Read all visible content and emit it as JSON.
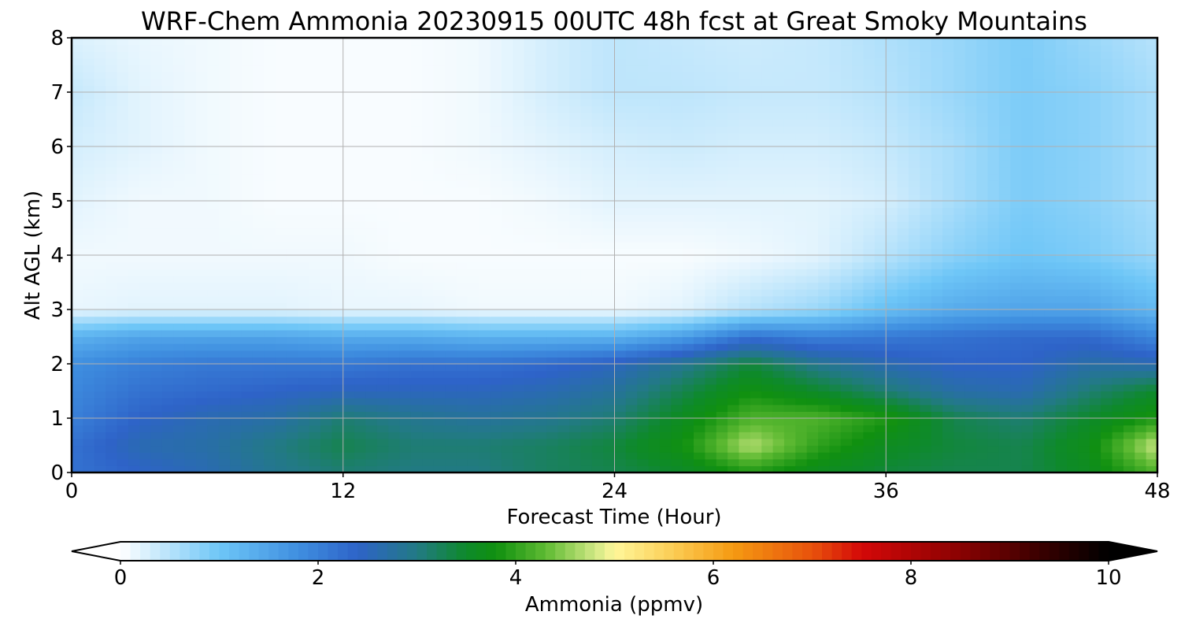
{
  "chart_data": {
    "type": "heatmap",
    "title": "WRF-Chem Ammonia  20230915 00UTC 48h fcst at Great Smoky Mountains",
    "xlabel": "Forecast Time (Hour)",
    "ylabel": "Alt AGL (km)",
    "xlim": [
      0,
      48
    ],
    "ylim": [
      0,
      8
    ],
    "x_ticks": [
      "0",
      "12",
      "24",
      "36",
      "48"
    ],
    "y_ticks": [
      "0",
      "1",
      "2",
      "3",
      "4",
      "5",
      "6",
      "7",
      "8"
    ],
    "grid": true,
    "x_hours": [
      0,
      3,
      6,
      9,
      12,
      15,
      18,
      21,
      24,
      27,
      30,
      33,
      36,
      39,
      42,
      45,
      48
    ],
    "z_km": [
      0,
      0.5,
      1,
      1.5,
      2,
      2.5,
      3,
      4,
      5,
      6,
      7,
      8
    ],
    "values_ppmv": [
      [
        2.2,
        2.4,
        2.6,
        2.9,
        3.1,
        3.0,
        3.0,
        3.2,
        3.3,
        3.5,
        3.9,
        3.6,
        3.4,
        3.3,
        3.3,
        3.6,
        4.2
      ],
      [
        2.2,
        2.6,
        2.7,
        3.0,
        3.3,
        3.1,
        3.1,
        3.2,
        3.4,
        3.8,
        4.7,
        4.0,
        3.6,
        3.4,
        3.3,
        3.7,
        4.8
      ],
      [
        2.0,
        2.4,
        2.6,
        2.7,
        3.1,
        2.9,
        2.8,
        2.9,
        3.1,
        3.6,
        4.2,
        4.2,
        3.9,
        3.3,
        3.1,
        3.5,
        3.9
      ],
      [
        1.9,
        2.2,
        2.3,
        2.4,
        2.5,
        2.5,
        2.5,
        2.6,
        2.8,
        3.3,
        3.8,
        3.5,
        3.1,
        2.7,
        2.6,
        3.1,
        3.5
      ],
      [
        1.8,
        2.0,
        2.1,
        2.1,
        2.1,
        2.2,
        2.2,
        2.3,
        2.5,
        2.9,
        3.4,
        2.9,
        2.6,
        2.4,
        2.4,
        2.7,
        2.6
      ],
      [
        1.3,
        1.5,
        1.5,
        1.5,
        1.4,
        1.4,
        1.3,
        1.3,
        1.3,
        1.6,
        2.2,
        2.0,
        2.1,
        2.2,
        2.3,
        2.3,
        1.9
      ],
      [
        0.15,
        0.2,
        0.2,
        0.2,
        0.15,
        0.15,
        0.1,
        0.1,
        0.1,
        0.2,
        0.5,
        0.7,
        1.1,
        1.4,
        1.5,
        1.5,
        1.2
      ],
      [
        0.1,
        0.1,
        0.1,
        0.1,
        0.1,
        0.05,
        0.05,
        0.05,
        0.05,
        0.05,
        0.1,
        0.2,
        0.5,
        0.8,
        1.0,
        0.9,
        0.7
      ],
      [
        0.2,
        0.1,
        0.1,
        0.05,
        0.05,
        0.05,
        0.05,
        0.1,
        0.2,
        0.2,
        0.2,
        0.2,
        0.3,
        0.6,
        0.9,
        0.8,
        0.6
      ],
      [
        0.3,
        0.2,
        0.1,
        0.05,
        0.05,
        0.05,
        0.1,
        0.2,
        0.3,
        0.35,
        0.3,
        0.3,
        0.4,
        0.6,
        0.9,
        0.8,
        0.6
      ],
      [
        0.4,
        0.2,
        0.1,
        0.05,
        0.05,
        0.05,
        0.1,
        0.3,
        0.45,
        0.45,
        0.4,
        0.4,
        0.5,
        0.7,
        0.9,
        0.8,
        0.6
      ],
      [
        0.25,
        0.15,
        0.1,
        0.05,
        0.05,
        0.05,
        0.1,
        0.3,
        0.45,
        0.4,
        0.35,
        0.4,
        0.55,
        0.7,
        0.9,
        0.7,
        0.5
      ]
    ],
    "colorbar": {
      "label": "Ammonia  (ppmv)",
      "ticks": [
        "0",
        "2",
        "4",
        "6",
        "8",
        "10"
      ],
      "range": [
        0,
        10
      ],
      "extend": "both",
      "stops": [
        {
          "v": 0.0,
          "c": "#ffffff"
        },
        {
          "v": 1.0,
          "c": "#6ec6f7"
        },
        {
          "v": 1.8,
          "c": "#3f8fe0"
        },
        {
          "v": 2.4,
          "c": "#2e63c8"
        },
        {
          "v": 3.0,
          "c": "#227a84"
        },
        {
          "v": 3.5,
          "c": "#0e8a2a"
        },
        {
          "v": 3.8,
          "c": "#109010"
        },
        {
          "v": 4.3,
          "c": "#5eba32"
        },
        {
          "v": 4.8,
          "c": "#cfe884"
        },
        {
          "v": 5.0,
          "c": "#fff79a"
        },
        {
          "v": 5.6,
          "c": "#fbcc54"
        },
        {
          "v": 6.2,
          "c": "#f59a12"
        },
        {
          "v": 7.0,
          "c": "#e8520c"
        },
        {
          "v": 7.5,
          "c": "#d40808"
        },
        {
          "v": 8.5,
          "c": "#8a0202"
        },
        {
          "v": 9.3,
          "c": "#3a0000"
        },
        {
          "v": 10.0,
          "c": "#000000"
        }
      ]
    }
  }
}
